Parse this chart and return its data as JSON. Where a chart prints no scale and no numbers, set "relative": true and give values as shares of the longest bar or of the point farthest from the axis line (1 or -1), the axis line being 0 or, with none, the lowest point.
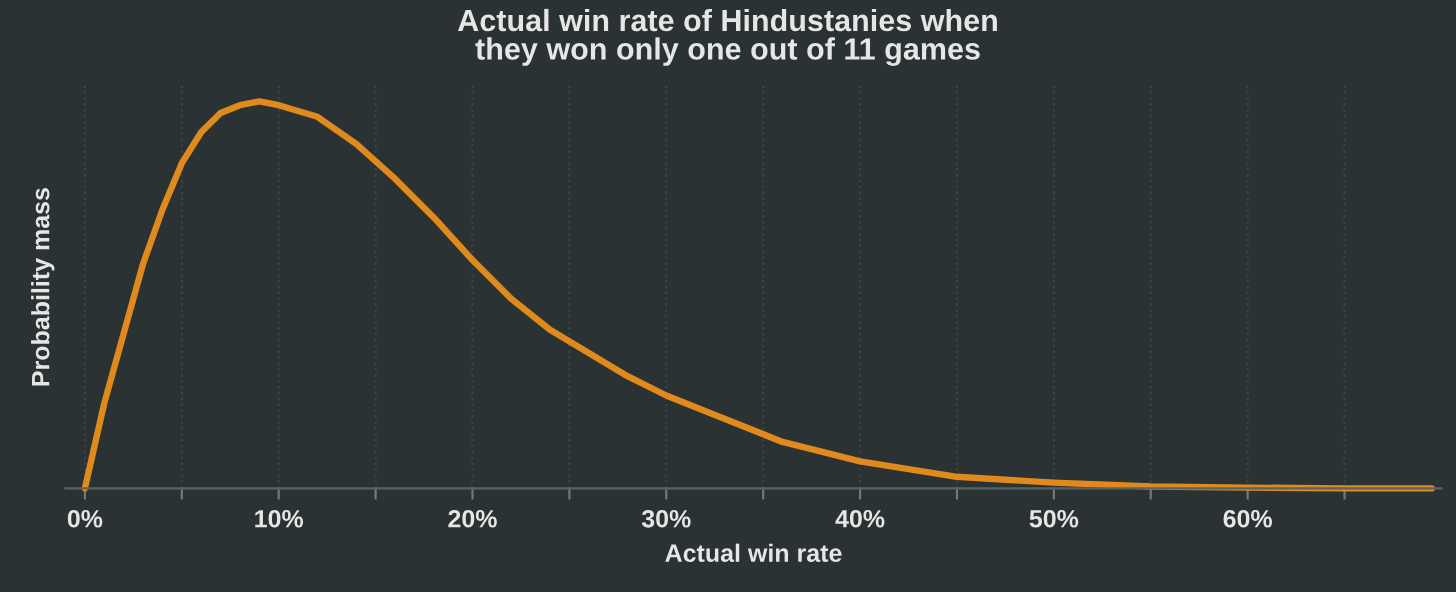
{
  "chart_data": {
    "type": "line",
    "title": "Actual win rate of Hindustanies when\nthey won only one out of 11 games",
    "xlabel": "Actual win rate",
    "ylabel": "Probability mass",
    "relative": true,
    "grid": "x",
    "legend": false,
    "marker": "none",
    "line_style": "solid",
    "x": [
      0,
      1,
      2,
      3,
      4,
      5,
      6,
      7,
      8,
      9,
      10,
      12,
      14,
      16,
      18,
      20,
      22,
      24,
      26,
      28,
      30,
      33,
      36,
      40,
      45,
      50,
      55,
      60,
      65,
      69.5
    ],
    "xlim": [
      -1,
      70
    ],
    "series": [
      {
        "color": "#e08a1e",
        "values": [
          0,
          0.22,
          0.4,
          0.58,
          0.72,
          0.84,
          0.92,
          0.97,
          0.99,
          1,
          0.99,
          0.96,
          0.89,
          0.8,
          0.7,
          0.59,
          0.49,
          0.41,
          0.35,
          0.29,
          0.24,
          0.18,
          0.12,
          0.07,
          0.03,
          0.015,
          0.005,
          0.002,
          0,
          0
        ]
      }
    ],
    "xticks": [
      {
        "value": 0,
        "label": "0%"
      },
      {
        "value": 5,
        "label": null
      },
      {
        "value": 10,
        "label": "10%"
      },
      {
        "value": 15,
        "label": null
      },
      {
        "value": 20,
        "label": "20%"
      },
      {
        "value": 25,
        "label": null
      },
      {
        "value": 30,
        "label": "30%"
      },
      {
        "value": 35,
        "label": null
      },
      {
        "value": 40,
        "label": "40%"
      },
      {
        "value": 45,
        "label": null
      },
      {
        "value": 50,
        "label": "50%"
      },
      {
        "value": 55,
        "label": null
      },
      {
        "value": 60,
        "label": "60%"
      },
      {
        "value": 65,
        "label": null
      }
    ]
  }
}
